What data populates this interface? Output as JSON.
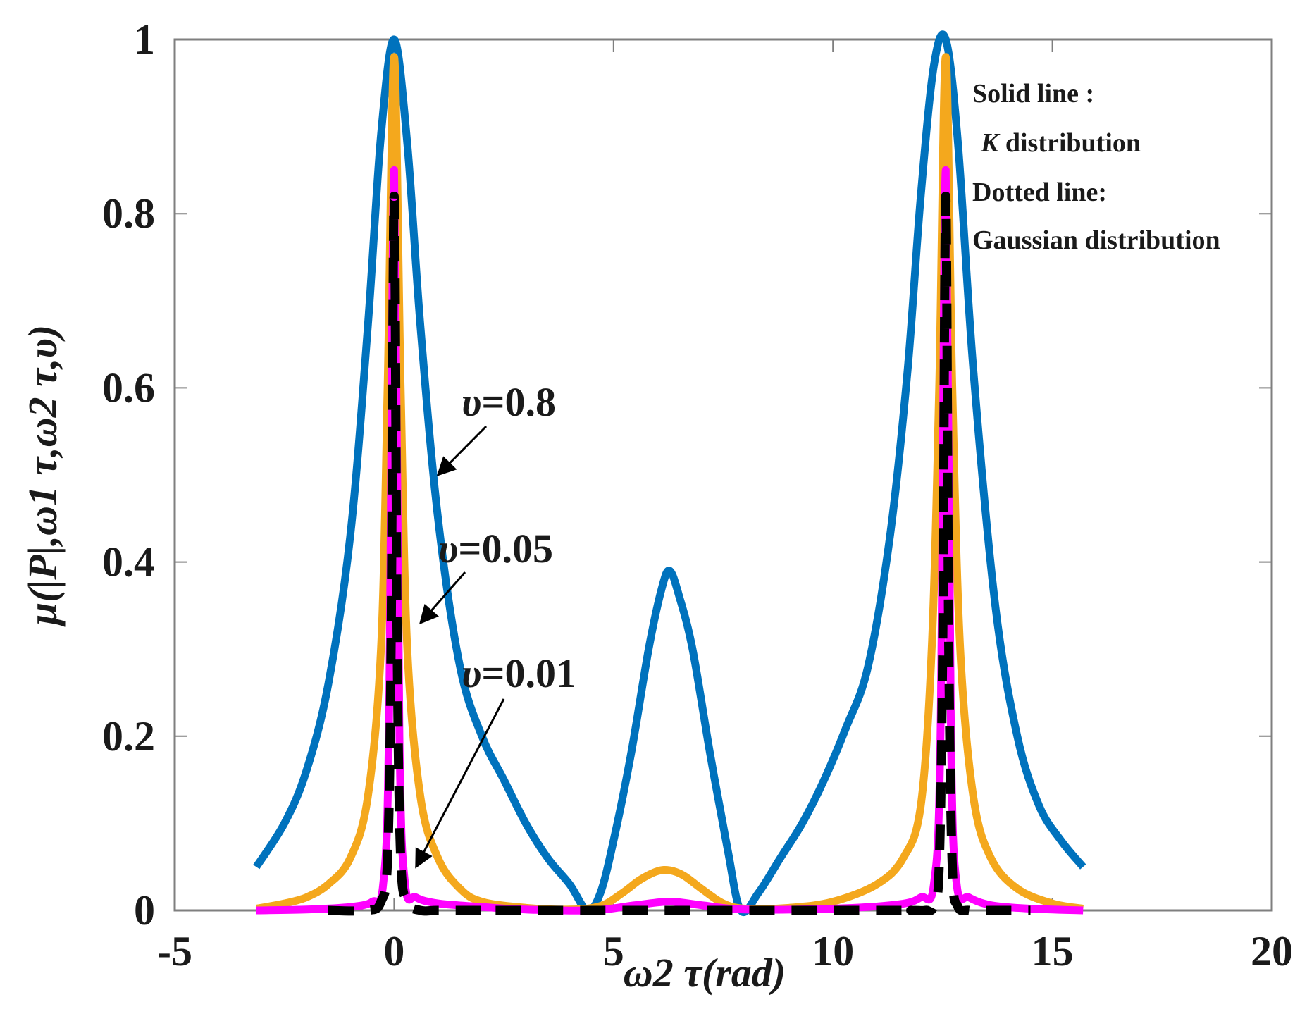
{
  "chart_data": {
    "type": "line",
    "title": "",
    "xlabel": "ω2 τ(rad)",
    "ylabel": "μ(|P|,ω1 τ,ω2 τ,υ)",
    "xlim": [
      -5,
      20
    ],
    "ylim": [
      0,
      1
    ],
    "xticks": [
      "-5",
      "0",
      "5",
      "10",
      "15",
      "20"
    ],
    "yticks": [
      "0",
      "0.2",
      "0.4",
      "0.6",
      "0.8",
      "1"
    ],
    "grid": false,
    "legend_text": {
      "solid_label": "Solid line :",
      "solid_desc_italic": "K",
      "solid_desc_rest": " distribution",
      "dotted_label": "Dotted line:",
      "dotted_desc": "Gaussian distribution"
    },
    "annotations": [
      {
        "symbol": "υ",
        "text": "=0.8",
        "target": [
          1.0,
          0.5
        ]
      },
      {
        "symbol": "υ",
        "text": "=0.05",
        "target": [
          0.6,
          0.33
        ]
      },
      {
        "symbol": "υ",
        "text": "=0.01",
        "target": [
          0.5,
          0.05
        ]
      }
    ],
    "series": [
      {
        "name": "K distribution, υ=0.8",
        "style": "solid",
        "color": "#0072bd",
        "x": [
          -3.14,
          -2.5,
          -2.0,
          -1.5,
          -1.0,
          -0.6,
          -0.3,
          0.0,
          0.3,
          0.6,
          1.0,
          1.5,
          2.0,
          2.5,
          3.0,
          3.5,
          4.0,
          4.4,
          4.7,
          5.0,
          5.4,
          5.8,
          6.1,
          6.28,
          6.5,
          6.8,
          7.2,
          7.6,
          7.9,
          8.3,
          8.8,
          9.3,
          9.8,
          10.3,
          10.8,
          11.3,
          11.7,
          12.0,
          12.3,
          12.57,
          12.85,
          13.2,
          13.7,
          14.2,
          14.7,
          15.2,
          15.7
        ],
        "values": [
          0.05,
          0.1,
          0.16,
          0.26,
          0.43,
          0.67,
          0.89,
          1.0,
          0.88,
          0.67,
          0.45,
          0.28,
          0.2,
          0.15,
          0.1,
          0.06,
          0.03,
          0.0,
          0.02,
          0.08,
          0.18,
          0.3,
          0.37,
          0.39,
          0.36,
          0.3,
          0.18,
          0.07,
          0.0,
          0.02,
          0.06,
          0.1,
          0.15,
          0.21,
          0.28,
          0.43,
          0.62,
          0.82,
          0.97,
          1.0,
          0.88,
          0.62,
          0.35,
          0.2,
          0.12,
          0.08,
          0.05
        ]
      },
      {
        "name": "K distribution, υ=0.05",
        "style": "solid",
        "color": "#f4a81d",
        "x": [
          -3.14,
          -2.5,
          -2.0,
          -1.5,
          -1.0,
          -0.6,
          -0.3,
          -0.15,
          0.0,
          0.15,
          0.3,
          0.6,
          1.0,
          1.5,
          2.0,
          3.0,
          4.0,
          4.7,
          5.2,
          5.6,
          6.0,
          6.28,
          6.6,
          7.0,
          7.5,
          8.0,
          9.0,
          10.0,
          11.0,
          11.6,
          12.0,
          12.25,
          12.42,
          12.57,
          12.72,
          12.9,
          13.2,
          13.6,
          14.2,
          15.0,
          15.7
        ],
        "values": [
          0.002,
          0.008,
          0.015,
          0.03,
          0.06,
          0.13,
          0.3,
          0.6,
          0.98,
          0.6,
          0.3,
          0.13,
          0.06,
          0.025,
          0.01,
          0.003,
          0.001,
          0.005,
          0.02,
          0.035,
          0.045,
          0.046,
          0.04,
          0.025,
          0.008,
          0.002,
          0.003,
          0.01,
          0.03,
          0.06,
          0.12,
          0.3,
          0.6,
          0.98,
          0.6,
          0.3,
          0.13,
          0.06,
          0.025,
          0.008,
          0.002
        ]
      },
      {
        "name": "K distribution, υ=0.01",
        "style": "solid",
        "color": "#ff00ff",
        "x": [
          -3.14,
          -2.0,
          -1.0,
          -0.5,
          -0.25,
          -0.12,
          0.0,
          0.12,
          0.25,
          0.5,
          1.0,
          2.0,
          3.0,
          4.5,
          5.5,
          6.28,
          7.0,
          8.0,
          10.0,
          11.5,
          12.0,
          12.3,
          12.45,
          12.57,
          12.69,
          12.82,
          13.1,
          13.6,
          14.5,
          15.7
        ],
        "values": [
          0.0,
          0.001,
          0.004,
          0.01,
          0.03,
          0.2,
          0.85,
          0.2,
          0.03,
          0.015,
          0.008,
          0.004,
          0.001,
          0.0,
          0.006,
          0.01,
          0.006,
          0.001,
          0.002,
          0.007,
          0.015,
          0.03,
          0.2,
          0.85,
          0.2,
          0.03,
          0.015,
          0.006,
          0.002,
          0.0
        ]
      },
      {
        "name": "Gaussian distribution",
        "style": "dashed",
        "color": "#000000",
        "x": [
          -1.5,
          -0.6,
          -0.3,
          -0.15,
          -0.07,
          0.0,
          0.07,
          0.15,
          0.3,
          0.6,
          1.0,
          2.0,
          3.0,
          11.0,
          11.8,
          12.1,
          12.3,
          12.42,
          12.5,
          12.57,
          12.64,
          12.72,
          12.84,
          13.1,
          13.6,
          14.5
        ],
        "values": [
          0.0,
          0.0,
          0.01,
          0.06,
          0.3,
          0.82,
          0.3,
          0.06,
          0.01,
          0.0,
          0.0,
          0.0,
          0.0,
          0.0,
          0.0,
          0.0,
          0.005,
          0.05,
          0.3,
          0.82,
          0.3,
          0.05,
          0.005,
          0.0,
          0.0,
          0.0
        ]
      }
    ]
  }
}
